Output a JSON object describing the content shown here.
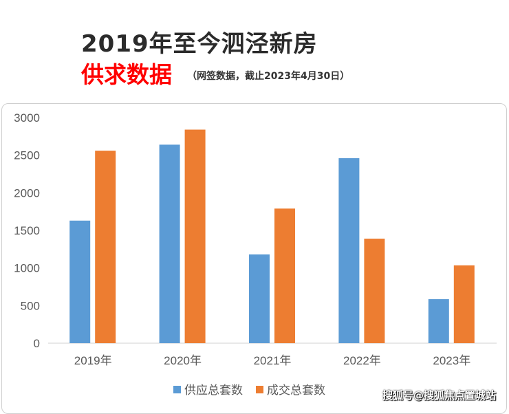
{
  "header": {
    "title": "2019年至今泗泾新房",
    "subtitle": "供求数据",
    "note": "（网签数据，截止2023年4月30日）"
  },
  "watermark": "搜狐号@搜狐焦点置城站",
  "chart_data": {
    "type": "bar",
    "categories": [
      "2019年",
      "2020年",
      "2021年",
      "2022年",
      "2023年"
    ],
    "series": [
      {
        "name": "供应总套数",
        "color": "#5b9bd5",
        "values": [
          1630,
          2640,
          1180,
          2460,
          585
        ]
      },
      {
        "name": "成交总套数",
        "color": "#ed7d31",
        "values": [
          2560,
          2840,
          1790,
          1390,
          1035
        ]
      }
    ],
    "ylim": [
      0,
      3000
    ],
    "yticks": [
      "0",
      "500",
      "1000",
      "1500",
      "2000",
      "2500",
      "3000"
    ],
    "grid": false,
    "legend": "bottom"
  }
}
